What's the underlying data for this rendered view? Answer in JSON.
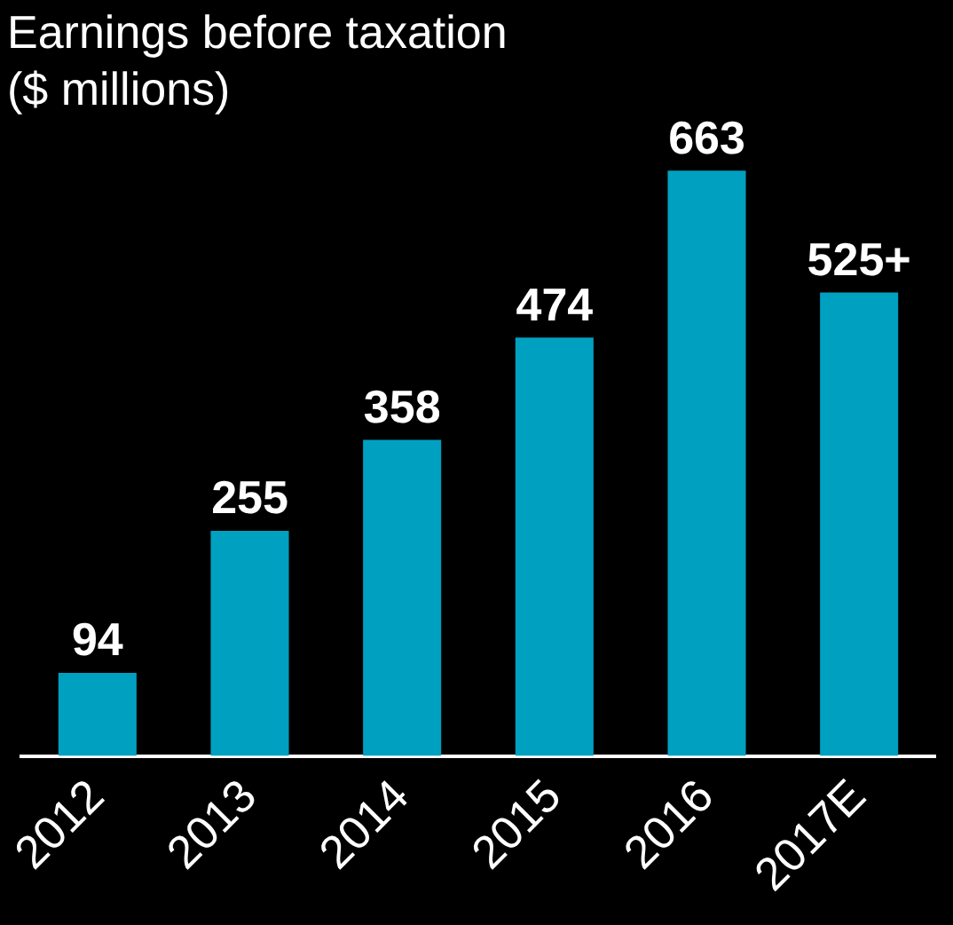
{
  "chart_data": {
    "type": "bar",
    "title": "Earnings before taxation ($ millions)",
    "categories": [
      "2012",
      "2013",
      "2014",
      "2015",
      "2016",
      "2017E"
    ],
    "values": [
      94,
      255,
      358,
      474,
      663,
      525
    ],
    "value_labels": [
      "94",
      "255",
      "358",
      "474",
      "663",
      "525+"
    ],
    "color": "#00a0c0",
    "legend": false
  }
}
